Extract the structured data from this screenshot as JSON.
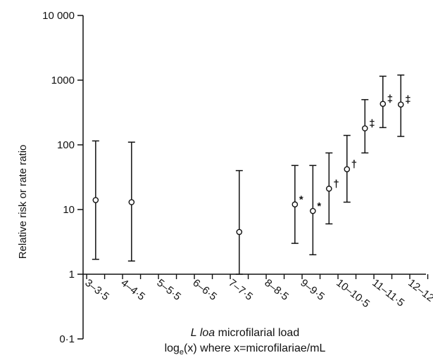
{
  "chart_data": {
    "type": "scatter",
    "scale": "log",
    "ylim": [
      0.1,
      10000
    ],
    "y_ticks": [
      {
        "value": 0.1,
        "label": "0·1"
      },
      {
        "value": 1,
        "label": "1"
      },
      {
        "value": 10,
        "label": "10"
      },
      {
        "value": 100,
        "label": "100"
      },
      {
        "value": 1000,
        "label": "1000"
      },
      {
        "value": 10000,
        "label": "10 000"
      }
    ],
    "categories": [
      "3–3·5",
      "4–4·5",
      "5–5·5",
      "6–6·5",
      "7–7·5",
      "8–8·5",
      "9–9·5",
      "10–10·5",
      "11–11·5",
      "12–12·5"
    ],
    "ylabel": "Relative risk or rate ratio",
    "xlabel_line1": {
      "italic": "L loa",
      "rest": " microfilarial load"
    },
    "xlabel_line2": {
      "prefix": "log",
      "sub": "e",
      "suffix": "(x) where x=microfilariae/mL"
    },
    "points": [
      {
        "x": 3.25,
        "y": 14,
        "low": 1.7,
        "high": 115,
        "mark": ""
      },
      {
        "x": 4.25,
        "y": 13,
        "low": 1.6,
        "high": 110,
        "mark": ""
      },
      {
        "x": 7.25,
        "y": 4.5,
        "low": 1,
        "high": 40,
        "mark": ""
      },
      {
        "x": 8.8,
        "y": 12,
        "low": 3,
        "high": 48,
        "mark": "*"
      },
      {
        "x": 9.3,
        "y": 9.5,
        "low": 2,
        "high": 48,
        "mark": "*"
      },
      {
        "x": 9.75,
        "y": 21,
        "low": 6,
        "high": 75,
        "mark": "†"
      },
      {
        "x": 10.25,
        "y": 42,
        "low": 13,
        "high": 140,
        "mark": "†"
      },
      {
        "x": 10.75,
        "y": 180,
        "low": 75,
        "high": 500,
        "mark": "‡"
      },
      {
        "x": 11.25,
        "y": 430,
        "low": 185,
        "high": 1150,
        "mark": "‡"
      },
      {
        "x": 11.75,
        "y": 420,
        "low": 135,
        "high": 1200,
        "mark": "‡"
      }
    ],
    "grid": false,
    "legend": "none"
  }
}
